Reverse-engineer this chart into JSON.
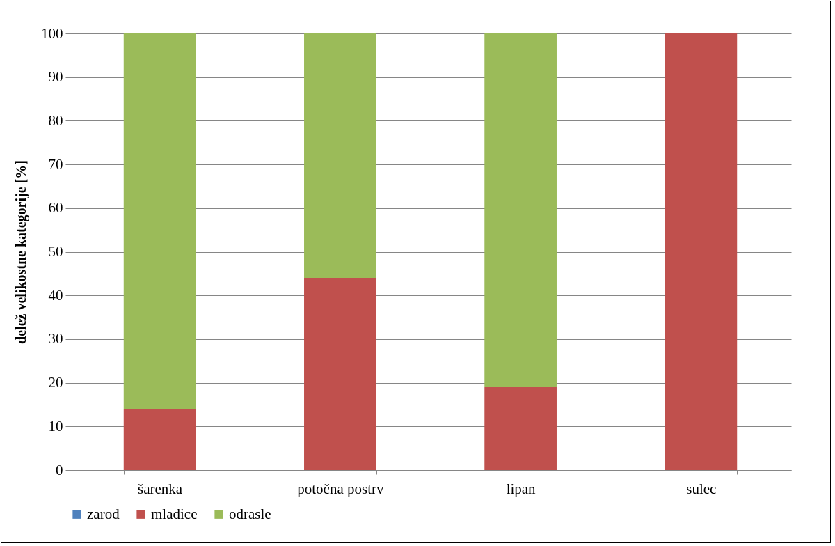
{
  "chart_data": {
    "type": "bar",
    "stacked": true,
    "ylabel": "delež velikostne kategorije [%]",
    "categories": [
      "šarenka",
      "potočna postrv",
      "lipan",
      "sulec"
    ],
    "series": [
      {
        "name": "zarod",
        "color": "#4f81bd",
        "values": [
          0,
          0,
          0,
          0
        ]
      },
      {
        "name": "mladice",
        "color": "#c0504d",
        "values": [
          14,
          44,
          19,
          100
        ]
      },
      {
        "name": "odrasle",
        "color": "#9bbb59",
        "values": [
          86,
          56,
          81,
          0
        ]
      }
    ],
    "ylim": [
      0,
      100
    ],
    "yticks": [
      0,
      10,
      20,
      30,
      40,
      50,
      60,
      70,
      80,
      90,
      100
    ],
    "grid": "y",
    "legend": "bottom"
  }
}
